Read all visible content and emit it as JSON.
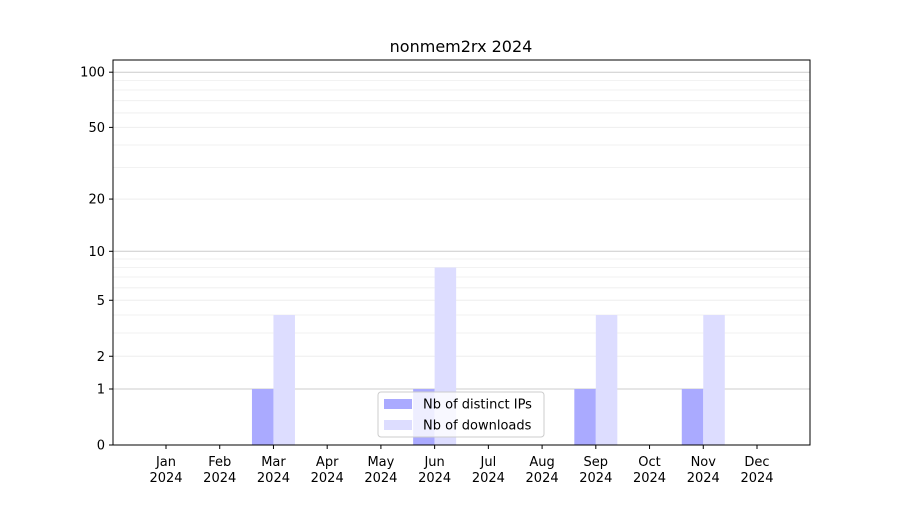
{
  "chart_data": {
    "type": "bar",
    "title": "nonmem2rx 2024",
    "xlabel": "",
    "ylabel": "",
    "yscale": "log(1+y)",
    "ylim": [
      0,
      110
    ],
    "yticks": [
      0,
      1,
      2,
      5,
      10,
      20,
      50,
      100
    ],
    "ytick_labels": [
      "0",
      "1",
      "2",
      "5",
      "10",
      "20",
      "50",
      "100"
    ],
    "grid": true,
    "legend_position": "bottom-center",
    "categories": [
      "Jan\n2024",
      "Feb\n2024",
      "Mar\n2024",
      "Apr\n2024",
      "May\n2024",
      "Jun\n2024",
      "Jul\n2024",
      "Aug\n2024",
      "Sep\n2024",
      "Oct\n2024",
      "Nov\n2024",
      "Dec\n2024"
    ],
    "series": [
      {
        "name": "Nb of distinct IPs",
        "color": "#aaaaff",
        "values": [
          0,
          0,
          1,
          0,
          0,
          1,
          0,
          0,
          1,
          0,
          1,
          0
        ]
      },
      {
        "name": "Nb of downloads",
        "color": "#ddddff",
        "values": [
          0,
          0,
          4,
          0,
          0,
          8,
          0,
          0,
          4,
          0,
          4,
          0
        ]
      }
    ]
  }
}
